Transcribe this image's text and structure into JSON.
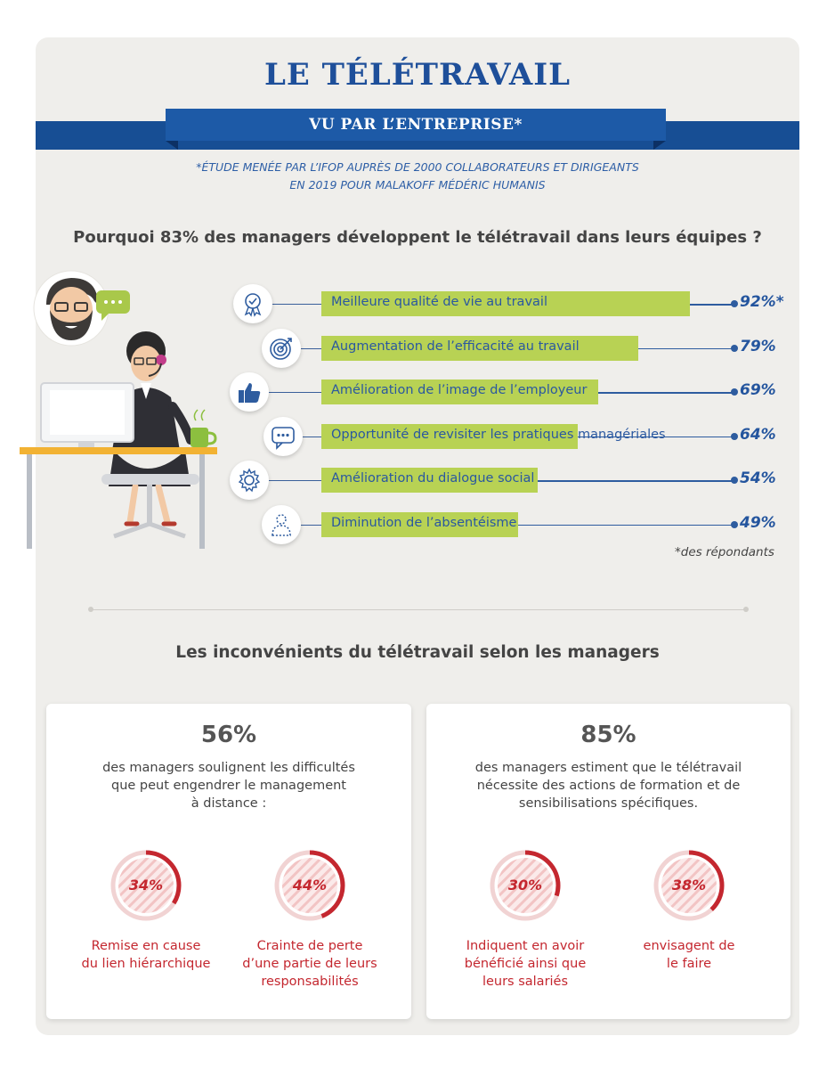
{
  "title": "LE TÉLÉTRAVAIL",
  "subtitle": "VU PAR L’ENTREPRISE*",
  "study_note": [
    "*ÉTUDE MENÉE PAR L’IFOP AUPRÈS DE 2000 COLLABORATEURS ET DIRIGEANTS",
    "EN 2019 POUR MALAKOFF MÉDÉRIC HUMANIS"
  ],
  "section1_title": "Pourquoi 83% des managers développent le télétravail dans leurs équipes ?",
  "reasons": [
    {
      "label": "Meilleure qualité de vie au travail",
      "percent_text": "92%*",
      "value": 92,
      "icon": "award-badge-icon"
    },
    {
      "label": "Augmentation de l’efficacité au travail",
      "percent_text": "79%",
      "value": 79,
      "icon": "target-icon"
    },
    {
      "label": "Amélioration de l’image de l’employeur",
      "percent_text": "69%",
      "value": 69,
      "icon": "thumbs-up-icon"
    },
    {
      "label": "Opportunité de revisiter les pratiques managériales",
      "percent_text": "64%",
      "value": 64,
      "icon": "speech-bubble-icon"
    },
    {
      "label": "Amélioration du dialogue social",
      "percent_text": "54%",
      "value": 54,
      "icon": "gear-icon"
    },
    {
      "label": "Diminution de l’absentéisme",
      "percent_text": "49%",
      "value": 49,
      "icon": "absent-person-icon"
    }
  ],
  "footnote": "*des répondants",
  "section2_title": "Les inconvénients du télétravail selon les managers",
  "panels": [
    {
      "big": "56%",
      "desc": [
        "des managers soulignent les difficultés",
        "que peut engendrer le management",
        "à distance :"
      ],
      "gauges": [
        {
          "value": 34,
          "text": "34%",
          "caption": [
            "Remise en cause",
            "du lien hiérarchique"
          ]
        },
        {
          "value": 44,
          "text": "44%",
          "caption": [
            "Crainte de perte",
            "d’une partie de leurs",
            "responsabilités"
          ]
        }
      ]
    },
    {
      "big": "85%",
      "desc": [
        "des managers estiment que le télétravail",
        "nécessite des actions de formation et de",
        "sensibilisations spécifiques."
      ],
      "gauges": [
        {
          "value": 30,
          "text": "30%",
          "caption": [
            "Indiquent en avoir",
            "bénéficié ainsi que",
            "leurs salariés"
          ]
        },
        {
          "value": 38,
          "text": "38%",
          "caption": [
            "envisagent de",
            "le faire"
          ]
        }
      ]
    }
  ],
  "colors": {
    "blue": "#1e4f9a",
    "green_bar": "#b8d254",
    "red": "#c4272f"
  }
}
